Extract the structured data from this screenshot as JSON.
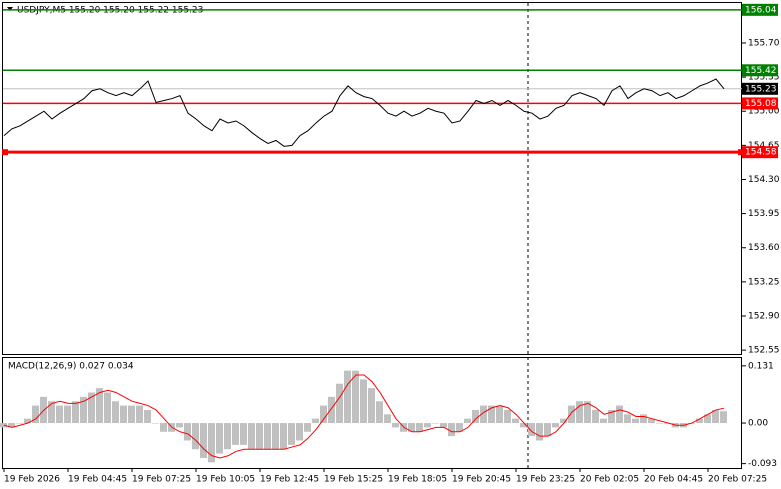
{
  "chart_data": [
    {
      "type": "line",
      "title": "USDJPY,M5  155.20 155.20 155.22 155.23",
      "color": "#000000",
      "values": [
        154.75,
        154.82,
        154.85,
        154.9,
        154.95,
        155.0,
        154.92,
        154.98,
        155.03,
        155.08,
        155.13,
        155.21,
        155.23,
        155.19,
        155.16,
        155.19,
        155.16,
        155.23,
        155.31,
        155.09,
        155.11,
        155.13,
        155.16,
        154.98,
        154.92,
        154.85,
        154.8,
        154.92,
        154.88,
        154.9,
        154.85,
        154.78,
        154.72,
        154.67,
        154.7,
        154.64,
        154.65,
        154.75,
        154.8,
        154.88,
        154.95,
        155.0,
        155.16,
        155.26,
        155.19,
        155.15,
        155.13,
        155.06,
        154.98,
        154.95,
        155.0,
        154.95,
        154.98,
        155.03,
        155.0,
        154.98,
        154.88,
        154.9,
        155.0,
        155.11,
        155.08,
        155.11,
        155.06,
        155.11,
        155.06,
        155.0,
        154.98,
        154.92,
        154.95,
        155.03,
        155.06,
        155.16,
        155.19,
        155.16,
        155.13,
        155.06,
        155.21,
        155.26,
        155.13,
        155.19,
        155.23,
        155.21,
        155.16,
        155.19,
        155.13,
        155.16,
        155.21,
        155.26,
        155.29,
        155.33,
        155.23
      ],
      "levels": [
        {
          "value": 156.04,
          "color": "#008000"
        },
        {
          "value": 155.42,
          "color": "#008000"
        },
        {
          "value": 155.08,
          "color": "#ff0000"
        },
        {
          "value": 154.58,
          "color": "#ff0000"
        }
      ],
      "current_price": 155.23,
      "ylim": [
        152.5,
        156.11
      ],
      "yticks": [
        {
          "value": 155.7,
          "label": "155.70"
        },
        155.35,
        {
          "value": 155.0,
          "label": "155.00"
        },
        154.65,
        {
          "value": 154.3,
          "label": "154.30"
        },
        153.95,
        {
          "value": 153.6,
          "label": "153.60"
        },
        153.25,
        {
          "value": 152.9,
          "label": "152.90"
        },
        152.55
      ]
    },
    {
      "type": "macd",
      "title": "MACD(12,26,9) 0.027 0.034",
      "categories": [
        "19 Feb 2026",
        null,
        null,
        null,
        null,
        null,
        null,
        null,
        "19 Feb 04:45",
        null,
        null,
        null,
        null,
        null,
        null,
        null,
        "19 Feb 07:25",
        null,
        null,
        null,
        null,
        null,
        null,
        null,
        "19 Feb 10:05",
        null,
        null,
        null,
        null,
        null,
        null,
        null,
        "19 Feb 12:45",
        null,
        null,
        null,
        null,
        null,
        null,
        null,
        "19 Feb 15:25",
        null,
        null,
        null,
        null,
        null,
        null,
        null,
        "19 Feb 18:05",
        null,
        null,
        null,
        null,
        null,
        null,
        null,
        "19 Feb 20:45",
        null,
        null,
        null,
        null,
        null,
        null,
        null,
        "19 Feb 23:25",
        null,
        null,
        null,
        null,
        null,
        null,
        null,
        "20 Feb 02:05",
        null,
        null,
        null,
        null,
        null,
        null,
        null,
        "20 Feb 04:45",
        null,
        null,
        null,
        null,
        null,
        null,
        null,
        "20 Feb 07:25",
        null,
        null
      ],
      "series": [
        {
          "type": "bar",
          "color": "#c0c0c0",
          "values": [
            -0.01,
            -0.01,
            0.0,
            0.01,
            0.04,
            0.06,
            0.05,
            0.04,
            0.04,
            0.05,
            0.06,
            0.07,
            0.08,
            0.07,
            0.05,
            0.04,
            0.04,
            0.04,
            0.03,
            0.0,
            -0.02,
            -0.02,
            -0.01,
            -0.04,
            -0.06,
            -0.08,
            -0.09,
            -0.07,
            -0.06,
            -0.05,
            -0.05,
            -0.06,
            -0.06,
            -0.06,
            -0.06,
            -0.06,
            -0.05,
            -0.04,
            -0.02,
            0.01,
            0.04,
            0.06,
            0.09,
            0.12,
            0.12,
            0.1,
            0.08,
            0.05,
            0.02,
            -0.01,
            -0.02,
            -0.02,
            -0.02,
            -0.01,
            0.0,
            -0.01,
            -0.03,
            -0.02,
            0.01,
            0.03,
            0.04,
            0.04,
            0.04,
            0.03,
            0.01,
            -0.01,
            -0.03,
            -0.04,
            -0.03,
            -0.01,
            0.01,
            0.04,
            0.05,
            0.05,
            0.03,
            0.01,
            0.03,
            0.04,
            0.02,
            0.01,
            0.02,
            0.01,
            0.0,
            0.0,
            -0.01,
            -0.01,
            0.0,
            0.01,
            0.02,
            0.03,
            0.027
          ]
        },
        {
          "type": "line",
          "color": "#ff0000",
          "values": [
            -0.005,
            -0.01,
            -0.005,
            0.0,
            0.01,
            0.03,
            0.045,
            0.05,
            0.045,
            0.045,
            0.05,
            0.06,
            0.07,
            0.075,
            0.07,
            0.06,
            0.05,
            0.045,
            0.04,
            0.03,
            0.01,
            -0.01,
            -0.02,
            -0.025,
            -0.04,
            -0.06,
            -0.075,
            -0.08,
            -0.075,
            -0.065,
            -0.06,
            -0.06,
            -0.06,
            -0.06,
            -0.06,
            -0.06,
            -0.055,
            -0.05,
            -0.035,
            -0.015,
            0.01,
            0.035,
            0.06,
            0.09,
            0.11,
            0.11,
            0.095,
            0.07,
            0.04,
            0.01,
            -0.01,
            -0.02,
            -0.02,
            -0.015,
            -0.01,
            -0.01,
            -0.02,
            -0.02,
            -0.01,
            0.01,
            0.025,
            0.035,
            0.04,
            0.035,
            0.02,
            0.0,
            -0.02,
            -0.03,
            -0.03,
            -0.02,
            0.0,
            0.025,
            0.04,
            0.045,
            0.035,
            0.02,
            0.025,
            0.03,
            0.025,
            0.015,
            0.015,
            0.01,
            0.005,
            0.0,
            -0.005,
            -0.005,
            0.0,
            0.01,
            0.02,
            0.03,
            0.034
          ]
        }
      ],
      "ylim": [
        -0.103,
        0.149
      ],
      "yticks": [
        0.131,
        {
          "value": 0,
          "label": "0.00"
        },
        -0.093
      ]
    }
  ]
}
